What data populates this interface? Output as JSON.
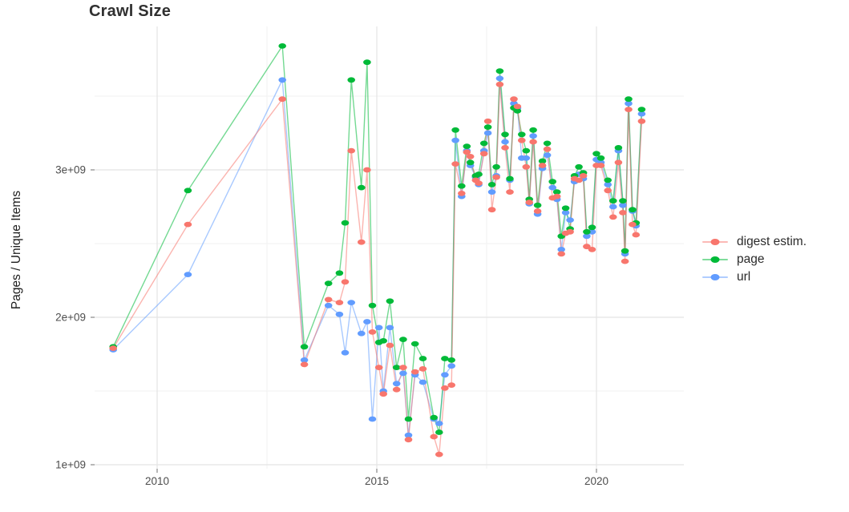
{
  "title": "Crawl Size",
  "axes": {
    "y_label": "Pages / Unique Items",
    "y_tick_labels": [
      "1e+09",
      "2e+09",
      "3e+09"
    ],
    "x_tick_labels": [
      "2010",
      "2015",
      "2020"
    ]
  },
  "legend": {
    "items": [
      {
        "label": "digest estim.",
        "color": "#F8766D"
      },
      {
        "label": "page",
        "color": "#00BA38"
      },
      {
        "label": "url",
        "color": "#619CFF"
      }
    ]
  },
  "chart_data": {
    "type": "line",
    "title": "Crawl Size",
    "xlabel": "",
    "ylabel": "Pages / Unique Items",
    "x_unit": "year (decimal, crawl date)",
    "y_unit": "count",
    "y_value_scale": 1000000000,
    "xlim": [
      2008.6,
      2022.1
    ],
    "ylim_e9": [
      0.97,
      3.98
    ],
    "x_major_ticks": [
      2010,
      2015,
      2020
    ],
    "x_minor_ticks": [
      2012.5,
      2017.5
    ],
    "y_major_ticks_e9": [
      1,
      2,
      3
    ],
    "y_minor_ticks_e9": [
      1.5,
      2.5,
      3.5
    ],
    "grid": "major+minor",
    "legend_position": "right",
    "x_years": [
      2009.0,
      2010.7,
      2012.85,
      2013.35,
      2013.9,
      2014.15,
      2014.28,
      2014.42,
      2014.65,
      2014.78,
      2014.9,
      2015.05,
      2015.15,
      2015.3,
      2015.45,
      2015.6,
      2015.72,
      2015.87,
      2016.05,
      2016.3,
      2016.42,
      2016.55,
      2016.7,
      2016.79,
      2016.93,
      2017.05,
      2017.13,
      2017.25,
      2017.32,
      2017.44,
      2017.53,
      2017.62,
      2017.72,
      2017.8,
      2017.92,
      2018.03,
      2018.12,
      2018.2,
      2018.3,
      2018.4,
      2018.47,
      2018.56,
      2018.66,
      2018.77,
      2018.88,
      2019.0,
      2019.1,
      2019.2,
      2019.3,
      2019.4,
      2019.5,
      2019.6,
      2019.7,
      2019.78,
      2019.9,
      2020.0,
      2020.1,
      2020.26,
      2020.38,
      2020.5,
      2020.6,
      2020.65,
      2020.73,
      2020.82,
      2020.9,
      2021.03
    ],
    "series": [
      {
        "name": "digest estim.",
        "color": "#F8766D",
        "values_e9": [
          1.79,
          2.63,
          3.48,
          1.68,
          2.12,
          2.1,
          2.24,
          3.13,
          2.51,
          3.0,
          1.9,
          1.66,
          1.48,
          1.81,
          1.51,
          1.66,
          1.17,
          1.63,
          1.65,
          1.19,
          1.07,
          1.52,
          1.54,
          3.04,
          2.84,
          3.12,
          3.09,
          2.93,
          2.91,
          3.11,
          3.33,
          2.73,
          2.95,
          3.58,
          3.15,
          2.85,
          3.48,
          3.43,
          3.2,
          3.02,
          2.78,
          3.19,
          2.72,
          3.03,
          3.14,
          2.81,
          2.82,
          2.43,
          2.57,
          2.58,
          2.94,
          2.93,
          2.96,
          2.48,
          2.46,
          3.03,
          3.03,
          2.86,
          2.68,
          3.05,
          2.71,
          2.38,
          3.41,
          2.63,
          2.56,
          3.33
        ]
      },
      {
        "name": "page",
        "color": "#00BA38",
        "values_e9": [
          1.8,
          2.86,
          3.84,
          1.8,
          2.23,
          2.3,
          2.64,
          3.61,
          2.88,
          3.73,
          2.08,
          1.83,
          1.84,
          2.11,
          1.66,
          1.85,
          1.31,
          1.82,
          1.72,
          1.32,
          1.22,
          1.72,
          1.71,
          3.27,
          2.89,
          3.16,
          3.05,
          2.96,
          2.97,
          3.18,
          3.29,
          2.9,
          3.02,
          3.67,
          3.24,
          2.94,
          3.42,
          3.4,
          3.24,
          3.13,
          2.8,
          3.27,
          2.76,
          3.06,
          3.18,
          2.92,
          2.85,
          2.55,
          2.74,
          2.6,
          2.96,
          3.02,
          2.98,
          2.58,
          2.61,
          3.11,
          3.08,
          2.93,
          2.79,
          3.15,
          2.79,
          2.45,
          3.48,
          2.73,
          2.64,
          3.41
        ]
      },
      {
        "name": "url",
        "color": "#619CFF",
        "values_e9": [
          1.78,
          2.29,
          3.61,
          1.71,
          2.08,
          2.02,
          1.76,
          2.1,
          1.89,
          1.97,
          1.31,
          1.93,
          1.5,
          1.93,
          1.55,
          1.62,
          1.2,
          1.61,
          1.56,
          1.31,
          1.28,
          1.61,
          1.67,
          3.2,
          2.82,
          3.13,
          3.03,
          2.95,
          2.9,
          3.13,
          3.25,
          2.85,
          2.96,
          3.62,
          3.19,
          2.93,
          3.45,
          3.42,
          3.08,
          3.08,
          2.77,
          3.23,
          2.7,
          3.01,
          3.1,
          2.88,
          2.8,
          2.46,
          2.71,
          2.66,
          2.92,
          2.97,
          2.94,
          2.55,
          2.58,
          3.07,
          3.05,
          2.9,
          2.75,
          3.13,
          2.76,
          2.43,
          3.45,
          2.72,
          2.62,
          3.38
        ]
      }
    ]
  }
}
